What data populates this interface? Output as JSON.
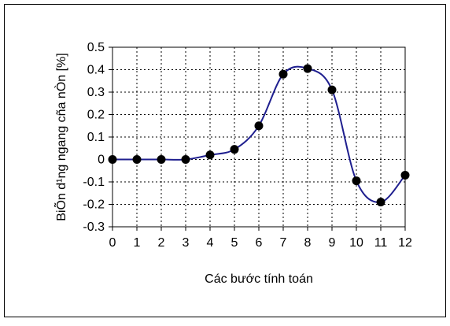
{
  "chart_data": {
    "type": "line",
    "title": "",
    "xlabel": "Các bước tính toán",
    "ylabel": "BiÕn d¹ng ngang cña nÒn [%]",
    "x": [
      0,
      1,
      2,
      3,
      4,
      5,
      6,
      7,
      8,
      9,
      10,
      11,
      12
    ],
    "series": [
      {
        "values": [
          0,
          0,
          0,
          0,
          0.02,
          0.045,
          0.15,
          0.38,
          0.405,
          0.31,
          -0.095,
          -0.19,
          -0.07
        ],
        "line_color": "#1f1f8f",
        "marker_color": "#000000",
        "marker": "circle"
      }
    ],
    "xlim": [
      0,
      12
    ],
    "ylim": [
      -0.3,
      0.5
    ],
    "x_ticks": [
      "0",
      "1",
      "2",
      "3",
      "4",
      "5",
      "6",
      "7",
      "8",
      "9",
      "10",
      "11",
      "12"
    ],
    "y_ticks": [
      "0.5",
      "0.4",
      "0.3",
      "0.2",
      "0.1",
      "0",
      "-0.1",
      "-0.2",
      "-0.3"
    ],
    "y_tick_values": [
      0.5,
      0.4,
      0.3,
      0.2,
      0.1,
      0,
      -0.1,
      -0.2,
      -0.3
    ],
    "grid": true,
    "grid_style": "dotted",
    "legend": "none"
  }
}
